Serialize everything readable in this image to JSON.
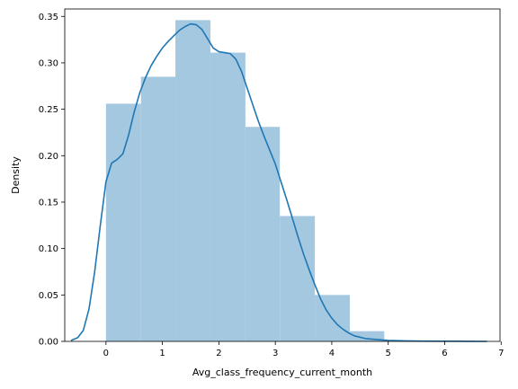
{
  "chart_data": {
    "type": "bar",
    "subtype": "histogram-with-kde",
    "title": "",
    "xlabel": "Avg_class_frequency_current_month",
    "ylabel": "Density",
    "xlim": [
      -0.73,
      6.98
    ],
    "ylim": [
      0,
      0.358
    ],
    "xticks": [
      0,
      1,
      2,
      3,
      4,
      5,
      6,
      7
    ],
    "yticks": [
      0.0,
      0.05,
      0.1,
      0.15,
      0.2,
      0.25,
      0.3,
      0.35
    ],
    "ytick_labels": [
      "0.00",
      "0.05",
      "0.10",
      "0.15",
      "0.20",
      "0.25",
      "0.30",
      "0.35"
    ],
    "grid": false,
    "legend": "none",
    "bar_color": "#a5c8e1",
    "line_color": "#1f77b4",
    "bins": [
      {
        "x0": 0.0,
        "x1": 0.62,
        "density": 0.256
      },
      {
        "x0": 0.62,
        "x1": 1.23,
        "density": 0.285
      },
      {
        "x0": 1.23,
        "x1": 1.85,
        "density": 0.346
      },
      {
        "x0": 1.85,
        "x1": 2.47,
        "density": 0.311
      },
      {
        "x0": 2.47,
        "x1": 3.08,
        "density": 0.231
      },
      {
        "x0": 3.08,
        "x1": 3.7,
        "density": 0.135
      },
      {
        "x0": 3.7,
        "x1": 4.32,
        "density": 0.05
      },
      {
        "x0": 4.32,
        "x1": 4.93,
        "density": 0.011
      }
    ],
    "kde": {
      "x": [
        -0.62,
        -0.5,
        -0.4,
        -0.3,
        -0.2,
        -0.1,
        0.0,
        0.1,
        0.2,
        0.3,
        0.4,
        0.5,
        0.6,
        0.7,
        0.8,
        0.9,
        1.0,
        1.1,
        1.2,
        1.3,
        1.4,
        1.5,
        1.6,
        1.7,
        1.8,
        1.9,
        2.0,
        2.1,
        2.2,
        2.3,
        2.4,
        2.5,
        2.6,
        2.7,
        2.8,
        2.9,
        3.0,
        3.1,
        3.2,
        3.3,
        3.4,
        3.5,
        3.6,
        3.7,
        3.8,
        3.9,
        4.0,
        4.1,
        4.2,
        4.3,
        4.4,
        4.6,
        4.8,
        5.0,
        5.3,
        5.6,
        6.0,
        6.4,
        6.75
      ],
      "y": [
        0.001,
        0.004,
        0.012,
        0.035,
        0.075,
        0.125,
        0.172,
        0.192,
        0.196,
        0.202,
        0.222,
        0.247,
        0.268,
        0.284,
        0.297,
        0.307,
        0.316,
        0.323,
        0.329,
        0.335,
        0.339,
        0.342,
        0.341,
        0.336,
        0.326,
        0.316,
        0.312,
        0.311,
        0.31,
        0.304,
        0.291,
        0.273,
        0.255,
        0.237,
        0.221,
        0.206,
        0.191,
        0.172,
        0.153,
        0.133,
        0.113,
        0.094,
        0.077,
        0.061,
        0.046,
        0.034,
        0.025,
        0.018,
        0.013,
        0.009,
        0.006,
        0.003,
        0.002,
        0.001,
        0.0005,
        0.0003,
        0.0002,
        0.0001,
        0.0
      ]
    }
  }
}
